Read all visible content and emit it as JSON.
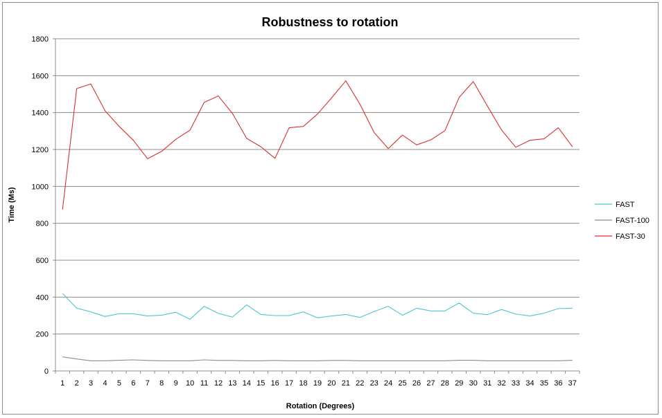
{
  "chart_data": {
    "type": "line",
    "title": "Robustness to rotation",
    "xlabel": "Rotation (Degrees)",
    "ylabel": "Time (Ms)",
    "ylim": [
      0,
      1800
    ],
    "yticks": [
      "0",
      "200",
      "400",
      "600",
      "800",
      "1000",
      "1200",
      "1400",
      "1600",
      "1800"
    ],
    "categories": [
      "1",
      "2",
      "3",
      "4",
      "5",
      "6",
      "7",
      "8",
      "9",
      "10",
      "11",
      "12",
      "13",
      "14",
      "15",
      "16",
      "17",
      "18",
      "19",
      "20",
      "21",
      "22",
      "23",
      "24",
      "25",
      "26",
      "27",
      "28",
      "29",
      "30",
      "31",
      "32",
      "33",
      "34",
      "35",
      "36",
      "37"
    ],
    "grid": true,
    "legend_position": "right",
    "series": [
      {
        "name": "FAST",
        "color": "#4bc6cf",
        "values": [
          420,
          340,
          320,
          295,
          310,
          310,
          298,
          302,
          318,
          280,
          350,
          312,
          292,
          358,
          306,
          300,
          300,
          320,
          288,
          298,
          306,
          290,
          322,
          350,
          302,
          340,
          325,
          325,
          368,
          313,
          305,
          333,
          308,
          298,
          313,
          338,
          340
        ]
      },
      {
        "name": "FAST-100",
        "color": "#8c8c8c",
        "values": [
          76,
          65,
          55,
          55,
          58,
          60,
          57,
          55,
          55,
          55,
          60,
          57,
          57,
          55,
          55,
          57,
          55,
          55,
          55,
          57,
          57,
          55,
          55,
          55,
          55,
          55,
          55,
          55,
          58,
          58,
          55,
          55,
          55,
          55,
          55,
          55,
          58
        ]
      },
      {
        "name": "FAST-30",
        "color": "#d93030",
        "values": [
          875,
          1530,
          1555,
          1410,
          1325,
          1250,
          1150,
          1190,
          1255,
          1305,
          1455,
          1490,
          1395,
          1260,
          1215,
          1152,
          1318,
          1325,
          1392,
          1480,
          1572,
          1445,
          1292,
          1205,
          1278,
          1225,
          1252,
          1302,
          1482,
          1568,
          1435,
          1305,
          1212,
          1250,
          1258,
          1318,
          1215
        ]
      }
    ]
  }
}
